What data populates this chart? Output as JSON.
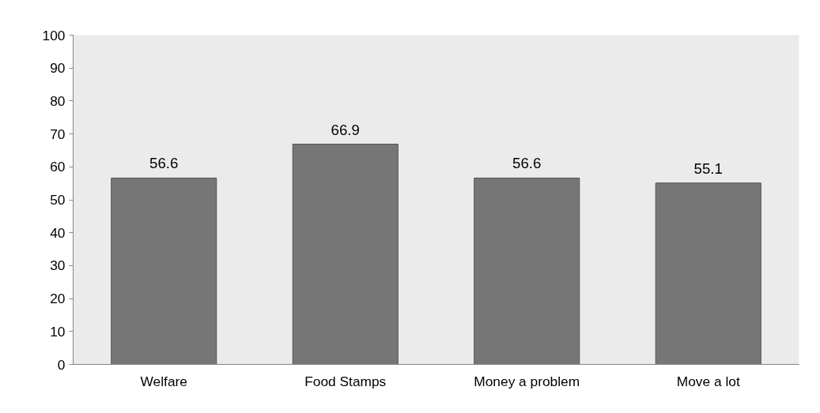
{
  "chart_data": {
    "type": "bar",
    "categories": [
      "Welfare",
      "Food Stamps",
      "Money a problem",
      "Move a lot"
    ],
    "values": [
      56.6,
      66.9,
      56.6,
      55.1
    ],
    "color": "#767676",
    "ylim": [
      0,
      100
    ],
    "yticks": [
      0,
      10,
      20,
      30,
      40,
      50,
      60,
      70,
      80,
      90,
      100
    ],
    "data_labels": true
  }
}
